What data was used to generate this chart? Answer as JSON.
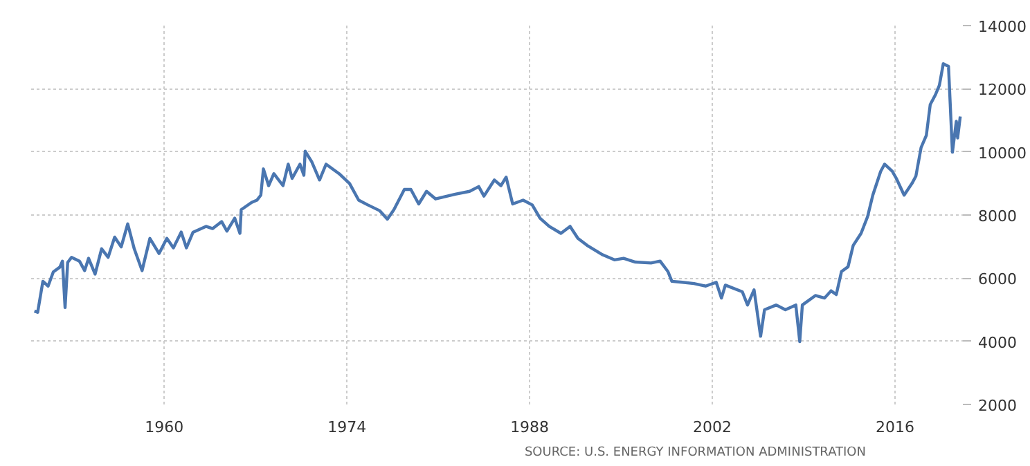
{
  "chart_data": {
    "type": "line",
    "xlim": [
      1949.8,
      2021.2
    ],
    "ylim": [
      2000,
      14000
    ],
    "xticks": [
      1960,
      1974,
      1988,
      2002,
      2016
    ],
    "yticks": [
      2000,
      4000,
      6000,
      8000,
      10000,
      12000,
      14000
    ],
    "grid": true,
    "marker": "none",
    "line_style": "solid",
    "annotations": [
      "SOURCE: U.S. ENERGY INFORMATION ADMINISTRATION"
    ],
    "series": [
      {
        "color": "#4a76b0",
        "x": [
          1950.05,
          1950.3,
          1950.7,
          1951.1,
          1951.5,
          1952.0,
          1952.2,
          1952.4,
          1952.6,
          1952.9,
          1953.5,
          1953.9,
          1954.2,
          1954.7,
          1955.2,
          1955.7,
          1956.2,
          1956.7,
          1957.2,
          1957.7,
          1958.3,
          1958.9,
          1959.6,
          1960.2,
          1960.7,
          1961.3,
          1961.7,
          1962.2,
          1963.2,
          1963.7,
          1964.4,
          1964.8,
          1965.4,
          1965.8,
          1965.9,
          1966.7,
          1967.1,
          1967.4,
          1967.6,
          1968.0,
          1968.4,
          1969.1,
          1969.5,
          1969.8,
          1970.4,
          1970.7,
          1970.8,
          1971.3,
          1971.9,
          1972.4,
          1973.4,
          1974.2,
          1974.9,
          1975.6,
          1976.5,
          1977.1,
          1977.6,
          1978.4,
          1978.9,
          1979.5,
          1980.1,
          1980.8,
          1982.3,
          1983.4,
          1984.1,
          1984.5,
          1985.3,
          1985.8,
          1986.2,
          1986.7,
          1987.5,
          1988.2,
          1988.8,
          1989.5,
          1990.4,
          1991.1,
          1991.7,
          1992.4,
          1993.6,
          1994.5,
          1995.2,
          1996.1,
          1997.3,
          1998.0,
          1998.6,
          1998.9,
          1999.7,
          2000.6,
          2001.5,
          2002.3,
          2002.7,
          2003.0,
          2004.3,
          2004.7,
          2005.2,
          2005.7,
          2006.0,
          2006.9,
          2007.6,
          2008.4,
          2008.7,
          2008.9,
          2009.9,
          2010.6,
          2011.1,
          2011.5,
          2011.9,
          2012.4,
          2012.8,
          2013.4,
          2013.9,
          2014.3,
          2014.9,
          2015.2,
          2015.8,
          2016.1,
          2016.7,
          2017.3,
          2017.6,
          2018.0,
          2018.4,
          2018.7,
          2019.1,
          2019.4,
          2019.7,
          2020.1,
          2020.4,
          2020.7,
          2020.8,
          2021.0
        ],
        "values": [
          4960,
          4920,
          5900,
          5750,
          6200,
          6350,
          6540,
          5070,
          6500,
          6660,
          6540,
          6240,
          6630,
          6130,
          6930,
          6660,
          7300,
          6990,
          7720,
          6930,
          6240,
          7260,
          6780,
          7260,
          6960,
          7460,
          6960,
          7450,
          7640,
          7570,
          7790,
          7490,
          7900,
          7420,
          8170,
          8400,
          8470,
          8630,
          9460,
          8930,
          9310,
          8930,
          9610,
          9160,
          9610,
          9260,
          10020,
          9690,
          9110,
          9610,
          9310,
          9000,
          8470,
          8320,
          8140,
          7870,
          8170,
          8810,
          8810,
          8350,
          8750,
          8510,
          8660,
          8750,
          8900,
          8600,
          9110,
          8930,
          9200,
          8350,
          8470,
          8320,
          7900,
          7640,
          7420,
          7640,
          7260,
          7040,
          6740,
          6580,
          6630,
          6510,
          6480,
          6540,
          6210,
          5900,
          5870,
          5830,
          5750,
          5870,
          5370,
          5780,
          5570,
          5150,
          5630,
          4160,
          5000,
          5150,
          5000,
          5150,
          3990,
          5150,
          5450,
          5370,
          5600,
          5480,
          6210,
          6360,
          7040,
          7420,
          7950,
          8630,
          9380,
          9610,
          9380,
          9160,
          8630,
          9000,
          9230,
          10140,
          10520,
          11500,
          11810,
          12110,
          12790,
          12710,
          9990,
          10970,
          10440,
          11120
        ]
      }
    ]
  }
}
